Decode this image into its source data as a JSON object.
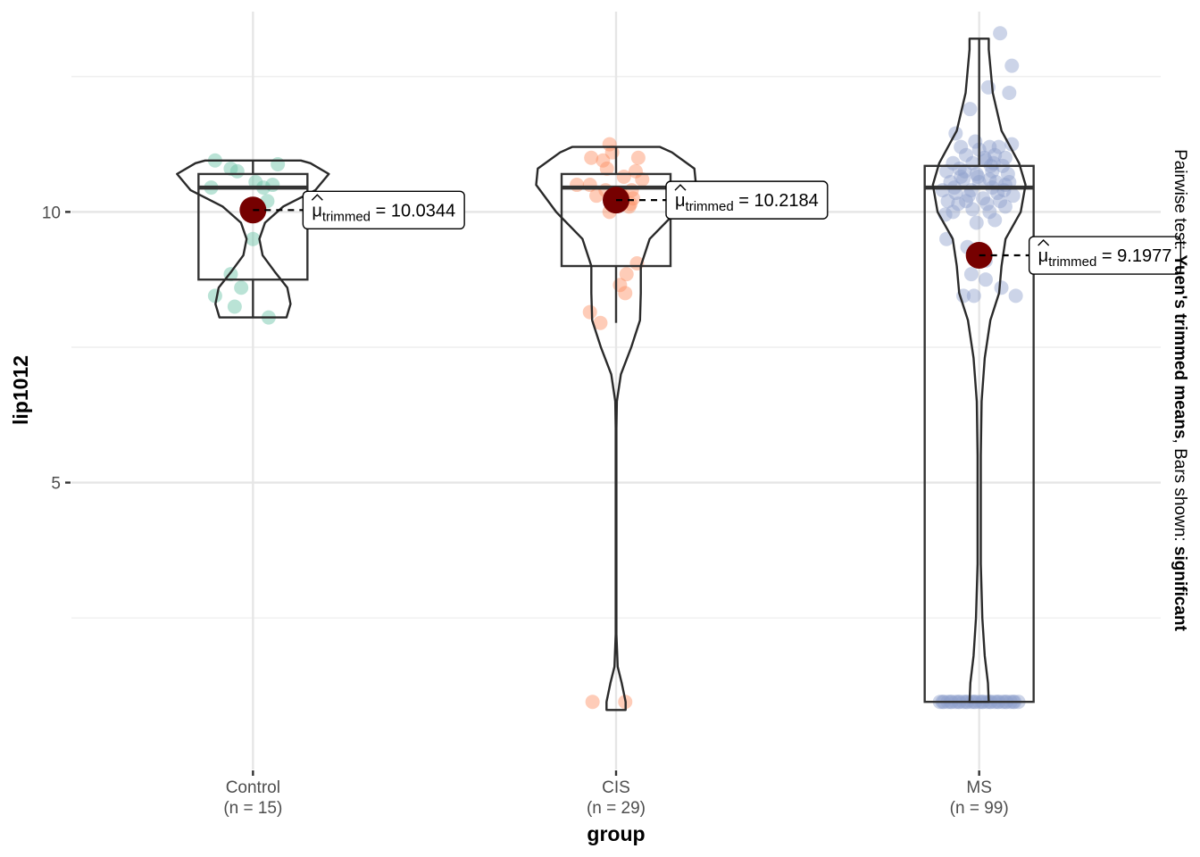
{
  "chart_data": {
    "type": "violin-box-scatter",
    "xlabel": "group",
    "ylabel": "lip1012",
    "ylim": [
      -0.3,
      13.7
    ],
    "y_ticks": [
      5,
      10
    ],
    "y_ticks_labels": [
      "5",
      "10"
    ],
    "y_minor_gridlines": [
      2.5,
      7.5,
      12.5
    ],
    "grid": true,
    "caption": {
      "prefix": "Pairwise test: ",
      "test": "Yuen's trimmed means",
      "middle": ", Bars shown: ",
      "bars": "significant"
    },
    "mean_label_prefix": "trimmed",
    "mean_label_sym": "μ",
    "groups": [
      {
        "name": "Control",
        "n_label": "(n = 15)",
        "color": "#66c2a5",
        "trimmed_mean": 10.0344,
        "trimmed_mean_label": "= 10.0344",
        "box": {
          "q1": 8.75,
          "median": 10.45,
          "q3": 10.7,
          "whisker_low": 8.05,
          "whisker_high": 10.95
        },
        "violin": [
          [
            8.05,
            0.42
          ],
          [
            8.3,
            0.47
          ],
          [
            8.6,
            0.43
          ],
          [
            8.9,
            0.27
          ],
          [
            9.2,
            0.12
          ],
          [
            9.5,
            0.08
          ],
          [
            9.8,
            0.15
          ],
          [
            10.1,
            0.38
          ],
          [
            10.4,
            0.78
          ],
          [
            10.7,
            0.95
          ],
          [
            10.9,
            0.72
          ],
          [
            10.95,
            0.6
          ]
        ],
        "points": [
          [
            -0.29,
            10.95
          ],
          [
            -0.17,
            10.8
          ],
          [
            -0.12,
            10.75
          ],
          [
            0.19,
            10.88
          ],
          [
            -0.32,
            10.45
          ],
          [
            0.02,
            10.55
          ],
          [
            0.08,
            10.45
          ],
          [
            0.15,
            10.5
          ],
          [
            0.11,
            10.2
          ],
          [
            0.0,
            9.5
          ],
          [
            -0.17,
            8.85
          ],
          [
            -0.09,
            8.6
          ],
          [
            -0.29,
            8.45
          ],
          [
            -0.14,
            8.25
          ],
          [
            0.12,
            8.05
          ]
        ]
      },
      {
        "name": "CIS",
        "n_label": "(n = 29)",
        "color": "#fc8d62",
        "trimmed_mean": 10.2184,
        "trimmed_mean_label": "= 10.2184",
        "box": {
          "q1": 9.0,
          "median": 10.45,
          "q3": 10.7,
          "whisker_low": 7.95,
          "whisker_high": 11.2
        },
        "violin": [
          [
            0.8,
            0.12
          ],
          [
            0.95,
            0.12
          ],
          [
            1.3,
            0.07
          ],
          [
            1.6,
            0.02
          ],
          [
            2.2,
            0.005
          ],
          [
            3.0,
            0.005
          ],
          [
            5.0,
            0.005
          ],
          [
            6.0,
            0.005
          ],
          [
            6.5,
            0.01
          ],
          [
            7.0,
            0.06
          ],
          [
            7.5,
            0.19
          ],
          [
            8.0,
            0.3
          ],
          [
            8.5,
            0.31
          ],
          [
            9.0,
            0.31
          ],
          [
            9.5,
            0.42
          ],
          [
            10.0,
            0.75
          ],
          [
            10.5,
            1.0
          ],
          [
            10.8,
            0.98
          ],
          [
            11.1,
            0.7
          ],
          [
            11.2,
            0.55
          ]
        ],
        "points": [
          [
            -0.05,
            11.25
          ],
          [
            -0.03,
            11.1
          ],
          [
            -0.19,
            11.0
          ],
          [
            -0.1,
            10.95
          ],
          [
            0.17,
            11.0
          ],
          [
            -0.07,
            10.8
          ],
          [
            0.15,
            10.75
          ],
          [
            0.06,
            10.65
          ],
          [
            -0.3,
            10.5
          ],
          [
            -0.2,
            10.5
          ],
          [
            0.2,
            10.6
          ],
          [
            0.12,
            10.4
          ],
          [
            -0.08,
            10.4
          ],
          [
            0.03,
            10.35
          ],
          [
            0.1,
            10.1
          ],
          [
            -0.05,
            10.0
          ],
          [
            0.16,
            9.05
          ],
          [
            0.08,
            8.85
          ],
          [
            0.03,
            8.65
          ],
          [
            0.07,
            8.5
          ],
          [
            -0.2,
            8.15
          ],
          [
            -0.12,
            7.95
          ],
          [
            -0.18,
            0.95
          ],
          [
            0.07,
            0.95
          ],
          [
            -0.01,
            10.25
          ],
          [
            0.05,
            10.3
          ],
          [
            0.13,
            10.25
          ],
          [
            -0.15,
            10.3
          ],
          [
            0.11,
            10.15
          ]
        ]
      },
      {
        "name": "MS",
        "n_label": "(n = 99)",
        "color": "#8da0cb",
        "trimmed_mean": 9.1977,
        "trimmed_mean_label": "= 9.1977",
        "box": {
          "q1": 0.95,
          "median": 10.45,
          "q3": 10.85,
          "whisker_low": 0.95,
          "whisker_high": 13.2
        },
        "violin": [
          [
            0.95,
            0.12
          ],
          [
            1.3,
            0.11
          ],
          [
            1.8,
            0.07
          ],
          [
            2.5,
            0.04
          ],
          [
            3.5,
            0.02
          ],
          [
            4.5,
            0.02
          ],
          [
            5.5,
            0.02
          ],
          [
            6.5,
            0.03
          ],
          [
            7.3,
            0.07
          ],
          [
            8.0,
            0.14
          ],
          [
            8.5,
            0.25
          ],
          [
            9.0,
            0.28
          ],
          [
            9.5,
            0.33
          ],
          [
            10.0,
            0.52
          ],
          [
            10.5,
            0.58
          ],
          [
            10.9,
            0.5
          ],
          [
            11.5,
            0.28
          ],
          [
            12.2,
            0.17
          ],
          [
            13.0,
            0.12
          ],
          [
            13.2,
            0.12
          ]
        ],
        "points": [
          [
            0.16,
            13.3
          ],
          [
            0.25,
            12.7
          ],
          [
            0.07,
            12.3
          ],
          [
            0.23,
            12.2
          ],
          [
            -0.07,
            11.9
          ],
          [
            -0.18,
            11.45
          ],
          [
            -0.14,
            11.2
          ],
          [
            0.0,
            11.15
          ],
          [
            0.08,
            11.2
          ],
          [
            0.15,
            11.2
          ],
          [
            0.25,
            11.25
          ],
          [
            -0.1,
            11.05
          ],
          [
            0.12,
            11.05
          ],
          [
            0.2,
            11.0
          ],
          [
            -0.2,
            10.9
          ],
          [
            -0.05,
            10.9
          ],
          [
            0.05,
            10.95
          ],
          [
            0.18,
            10.85
          ],
          [
            -0.25,
            10.75
          ],
          [
            -0.15,
            10.8
          ],
          [
            -0.02,
            10.7
          ],
          [
            0.1,
            10.75
          ],
          [
            0.22,
            10.7
          ],
          [
            -0.22,
            10.55
          ],
          [
            -0.12,
            10.6
          ],
          [
            0.0,
            10.55
          ],
          [
            0.08,
            10.6
          ],
          [
            0.2,
            10.5
          ],
          [
            -0.28,
            10.4
          ],
          [
            -0.18,
            10.35
          ],
          [
            -0.06,
            10.4
          ],
          [
            0.14,
            10.35
          ],
          [
            0.26,
            10.3
          ],
          [
            -0.24,
            10.2
          ],
          [
            -0.1,
            10.2
          ],
          [
            0.03,
            10.25
          ],
          [
            0.16,
            10.2
          ],
          [
            -0.2,
            10.0
          ],
          [
            -0.05,
            10.05
          ],
          [
            0.08,
            10.0
          ],
          [
            0.2,
            10.1
          ],
          [
            -0.26,
            9.95
          ],
          [
            0.12,
            9.85
          ],
          [
            -0.02,
            9.8
          ],
          [
            -0.09,
            9.35
          ],
          [
            0.05,
            9.1
          ],
          [
            -0.06,
            8.85
          ],
          [
            0.05,
            8.75
          ],
          [
            0.17,
            8.6
          ],
          [
            -0.04,
            8.45
          ],
          [
            -0.12,
            8.45
          ],
          [
            0.28,
            8.45
          ],
          [
            -0.25,
            9.5
          ],
          [
            0.1,
            10.45
          ],
          [
            -0.14,
            10.65
          ],
          [
            0.04,
            11.0
          ],
          [
            -0.03,
            11.3
          ],
          [
            0.11,
            10.9
          ],
          [
            -0.16,
            10.15
          ],
          [
            0.23,
            10.55
          ],
          [
            -0.3,
            0.95
          ],
          [
            -0.27,
            0.95
          ],
          [
            -0.24,
            0.95
          ],
          [
            -0.21,
            0.95
          ],
          [
            -0.18,
            0.95
          ],
          [
            -0.15,
            0.95
          ],
          [
            -0.12,
            0.95
          ],
          [
            -0.09,
            0.95
          ],
          [
            -0.06,
            0.95
          ],
          [
            -0.03,
            0.95
          ],
          [
            0.0,
            0.95
          ],
          [
            0.03,
            0.95
          ],
          [
            0.06,
            0.95
          ],
          [
            0.09,
            0.95
          ],
          [
            0.12,
            0.95
          ],
          [
            0.15,
            0.95
          ],
          [
            0.18,
            0.95
          ],
          [
            0.21,
            0.95
          ],
          [
            0.24,
            0.95
          ],
          [
            0.27,
            0.95
          ],
          [
            0.3,
            0.95
          ],
          [
            -0.28,
            0.95
          ],
          [
            -0.22,
            0.95
          ],
          [
            -0.16,
            0.95
          ],
          [
            -0.1,
            0.95
          ],
          [
            -0.04,
            0.95
          ],
          [
            0.02,
            0.95
          ],
          [
            0.08,
            0.95
          ],
          [
            0.14,
            0.95
          ],
          [
            0.2,
            0.95
          ],
          [
            0.26,
            0.95
          ],
          [
            -0.19,
            10.45
          ],
          [
            0.19,
            10.4
          ],
          [
            -0.08,
            10.3
          ],
          [
            0.06,
            10.15
          ],
          [
            -0.11,
            10.75
          ],
          [
            0.09,
            10.85
          ],
          [
            -0.01,
            10.65
          ],
          [
            0.13,
            10.55
          ]
        ]
      }
    ]
  }
}
